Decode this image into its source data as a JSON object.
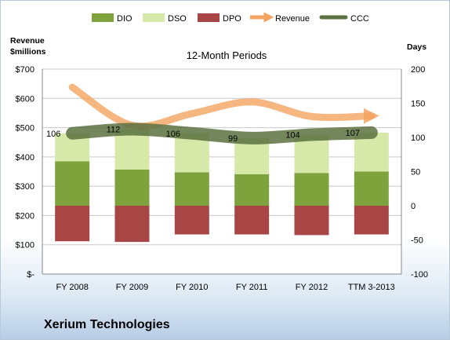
{
  "company_name": "Xerium Technologies",
  "chart_data": {
    "type": "bar",
    "title": "12-Month Periods",
    "left_axis_label_line1": "Revenue",
    "left_axis_label_line2": "$millions",
    "right_axis_label": "Days",
    "categories": [
      "FY 2008",
      "FY 2009",
      "FY 2010",
      "FY 2011",
      "FY 2012",
      "TTM 3-2013"
    ],
    "left_axis": {
      "min": 0,
      "max": 700,
      "step": 100,
      "tick_labels": [
        "$-",
        "$100",
        "$200",
        "$300",
        "$400",
        "$500",
        "$600",
        "$700"
      ]
    },
    "right_axis": {
      "min": -100,
      "max": 200,
      "step": 50,
      "tick_labels": [
        "-100",
        "-50",
        "0",
        "50",
        "100",
        "150",
        "200"
      ]
    },
    "legend": [
      "DIO",
      "DSO",
      "DPO",
      "Revenue",
      "CCC"
    ],
    "legend_position": "top",
    "series": [
      {
        "name": "DIO",
        "type": "stacked-bar",
        "axis": "right",
        "color": "#7ea33c",
        "values": [
          65,
          53,
          49,
          46,
          48,
          50
        ]
      },
      {
        "name": "DSO",
        "type": "stacked-bar",
        "axis": "right",
        "color": "#d6e9a8",
        "values": [
          41,
          59,
          57,
          53,
          56,
          57
        ]
      },
      {
        "name": "DPO",
        "type": "stacked-bar-negative",
        "axis": "right",
        "color": "#a84545",
        "values": [
          -52,
          -53,
          -42,
          -42,
          -43,
          -42
        ]
      },
      {
        "name": "Revenue",
        "type": "line",
        "axis": "left",
        "color": "#f4a460",
        "values": [
          638,
          508,
          548,
          588,
          538,
          540
        ]
      },
      {
        "name": "CCC",
        "type": "line",
        "axis": "right",
        "color": "#5a7140",
        "values": [
          106,
          112,
          106,
          99,
          104,
          107
        ]
      }
    ],
    "ccc_labels": [
      "106",
      "112",
      "106",
      "99",
      "104",
      "107"
    ]
  }
}
